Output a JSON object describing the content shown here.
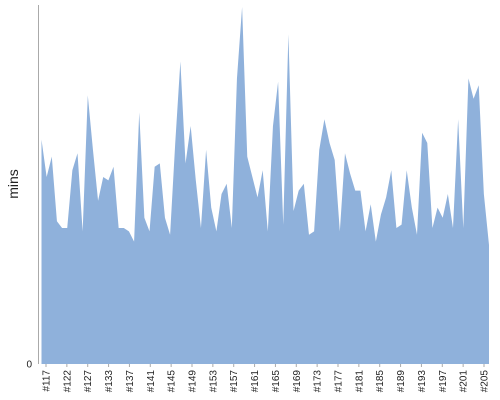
{
  "chart_data": {
    "type": "area",
    "title": "",
    "xlabel": "",
    "ylabel": "mins",
    "y_ticks": [
      0
    ],
    "ylim": [
      0,
      100
    ],
    "x_tick_labels": [
      "#117",
      "#122",
      "#127",
      "#133",
      "#137",
      "#141",
      "#145",
      "#149",
      "#153",
      "#157",
      "#161",
      "#165",
      "#169",
      "#173",
      "#177",
      "#181",
      "#185",
      "#189",
      "#193",
      "#197",
      "#201",
      "#205"
    ],
    "grid": false,
    "legend": "none",
    "colors": {
      "fill": "#8fb1db",
      "axis": "#aaaaaa",
      "text": "#222222"
    },
    "series": [
      {
        "values": [
          66,
          55,
          61,
          42,
          40,
          40,
          57,
          62,
          39,
          79,
          63,
          48,
          55,
          54,
          58,
          40,
          40,
          39,
          36,
          74,
          43,
          39,
          58,
          59,
          43,
          38,
          65,
          89,
          59,
          70,
          54,
          40,
          63,
          46,
          39,
          50,
          53,
          40,
          84,
          105,
          61,
          55,
          49,
          57,
          39,
          70,
          83,
          41,
          97,
          45,
          51,
          53,
          38,
          39,
          63,
          72,
          65,
          60,
          39,
          62,
          56,
          51,
          51,
          39,
          47,
          36,
          44,
          49,
          57,
          40,
          41,
          57,
          46,
          38,
          68,
          65,
          40,
          46,
          43,
          50,
          40,
          72,
          40,
          84,
          78,
          82,
          50,
          35
        ]
      }
    ]
  }
}
